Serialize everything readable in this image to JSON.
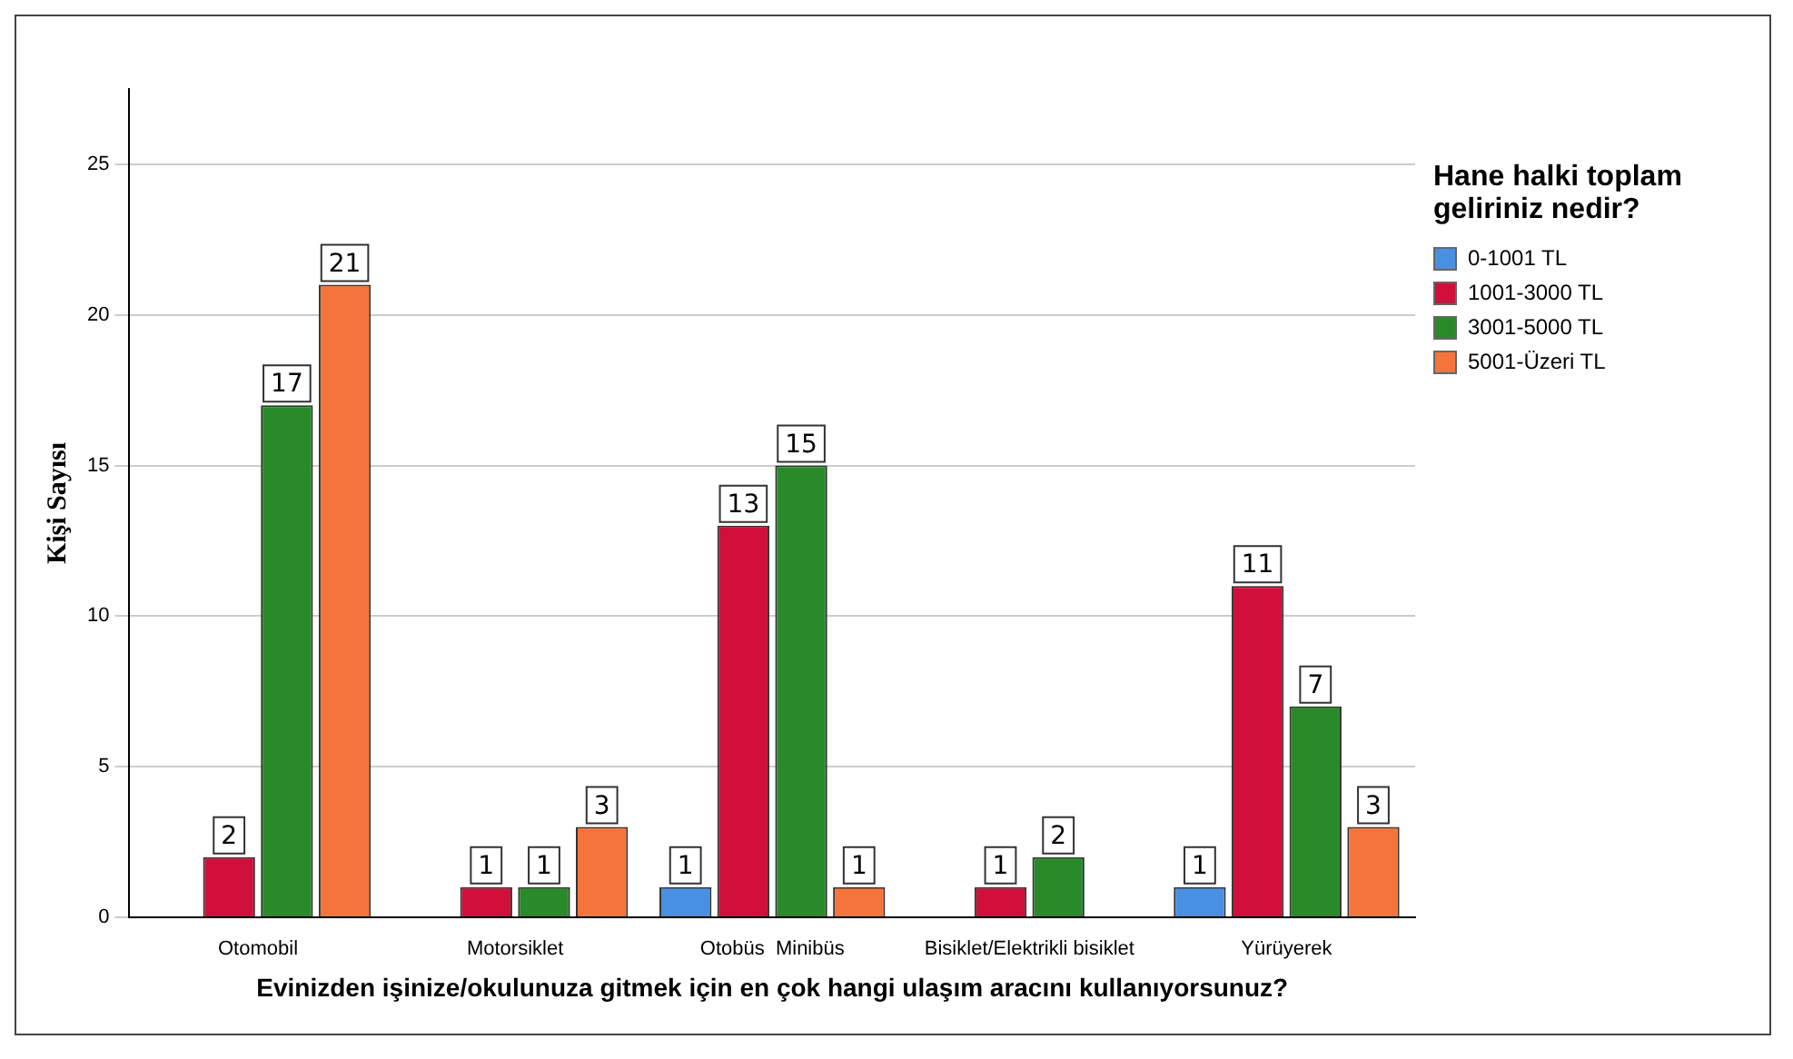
{
  "chart_data": {
    "type": "bar",
    "ylabel": "Kişi Sayısı",
    "xlabel": "Evinizden işinize/okulunuza gitmek için en çok hangi ulaşım aracını kullanıyorsunuz?",
    "legend_title": "Hane halki toplam geliriniz nedir?",
    "categories": [
      "Otomobil",
      "Motorsiklet",
      "Otobüs  Minibüs",
      "Bisiklet/Elektrikli bisiklet",
      "Yürüyerek"
    ],
    "series": [
      {
        "name": "0-1001  TL",
        "color": "#4a90e2",
        "values": [
          null,
          null,
          1,
          null,
          1
        ]
      },
      {
        "name": "1001-3000  TL",
        "color": "#d0103a",
        "values": [
          2,
          1,
          13,
          1,
          11
        ]
      },
      {
        "name": "3001-5000  TL",
        "color": "#2a8a2a",
        "values": [
          17,
          1,
          15,
          2,
          7
        ]
      },
      {
        "name": "5001-Üzeri  TL",
        "color": "#f4743b",
        "values": [
          21,
          3,
          1,
          null,
          3
        ]
      }
    ],
    "ylim": [
      0,
      27.5
    ],
    "yticks": [
      0,
      5,
      10,
      15,
      20,
      25
    ],
    "grid": "y",
    "legend": "right",
    "data_labels": true
  }
}
